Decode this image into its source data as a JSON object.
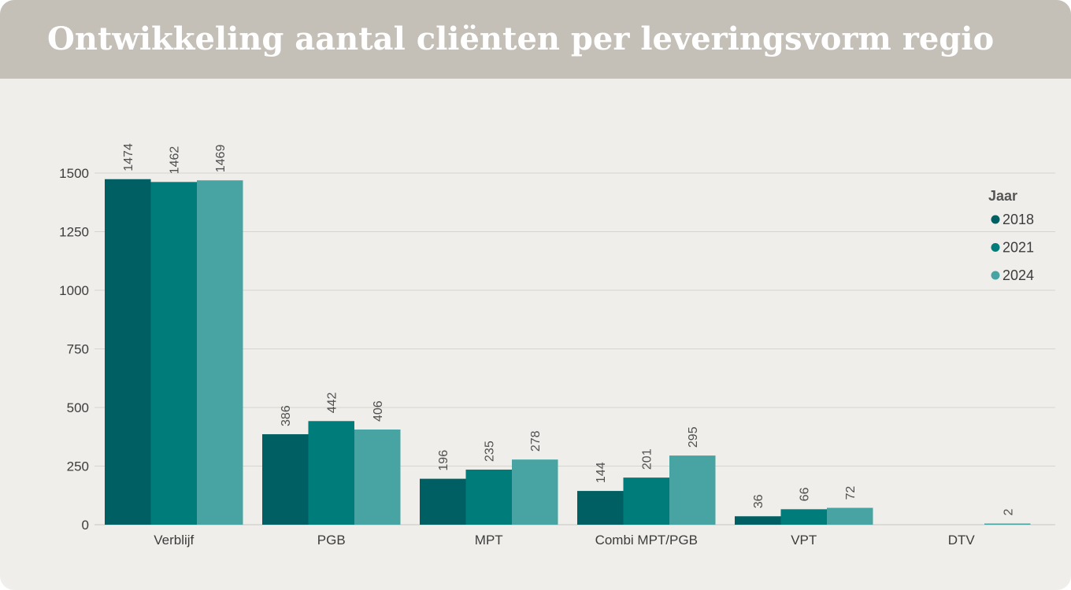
{
  "header": {
    "title": "Ontwikkeling aantal cliënten per leveringsvorm regio"
  },
  "colors": {
    "header_bg": "#c4c0b8",
    "panel_bg": "#efeeea",
    "gridline": "#d6d4cf"
  },
  "chart_data": {
    "type": "bar",
    "title": "Ontwikkeling aantal cliënten per leveringsvorm regio",
    "xlabel": "",
    "ylabel": "",
    "ylim": [
      0,
      1500
    ],
    "yticks": [
      0,
      250,
      500,
      750,
      1000,
      1250,
      1500
    ],
    "grid": true,
    "legend_position": "top-right",
    "legend_title": "Jaar",
    "categories": [
      "Verblijf",
      "PGB",
      "MPT",
      "Combi MPT/PGB",
      "VPT",
      "DTV"
    ],
    "series": [
      {
        "name": "2018",
        "color": "#005f63",
        "values": [
          1474,
          386,
          196,
          144,
          36,
          null
        ]
      },
      {
        "name": "2021",
        "color": "#007c7a",
        "values": [
          1462,
          442,
          235,
          201,
          66,
          null
        ]
      },
      {
        "name": "2024",
        "color": "#47a4a3",
        "values": [
          1469,
          406,
          278,
          295,
          72,
          2
        ]
      }
    ]
  }
}
